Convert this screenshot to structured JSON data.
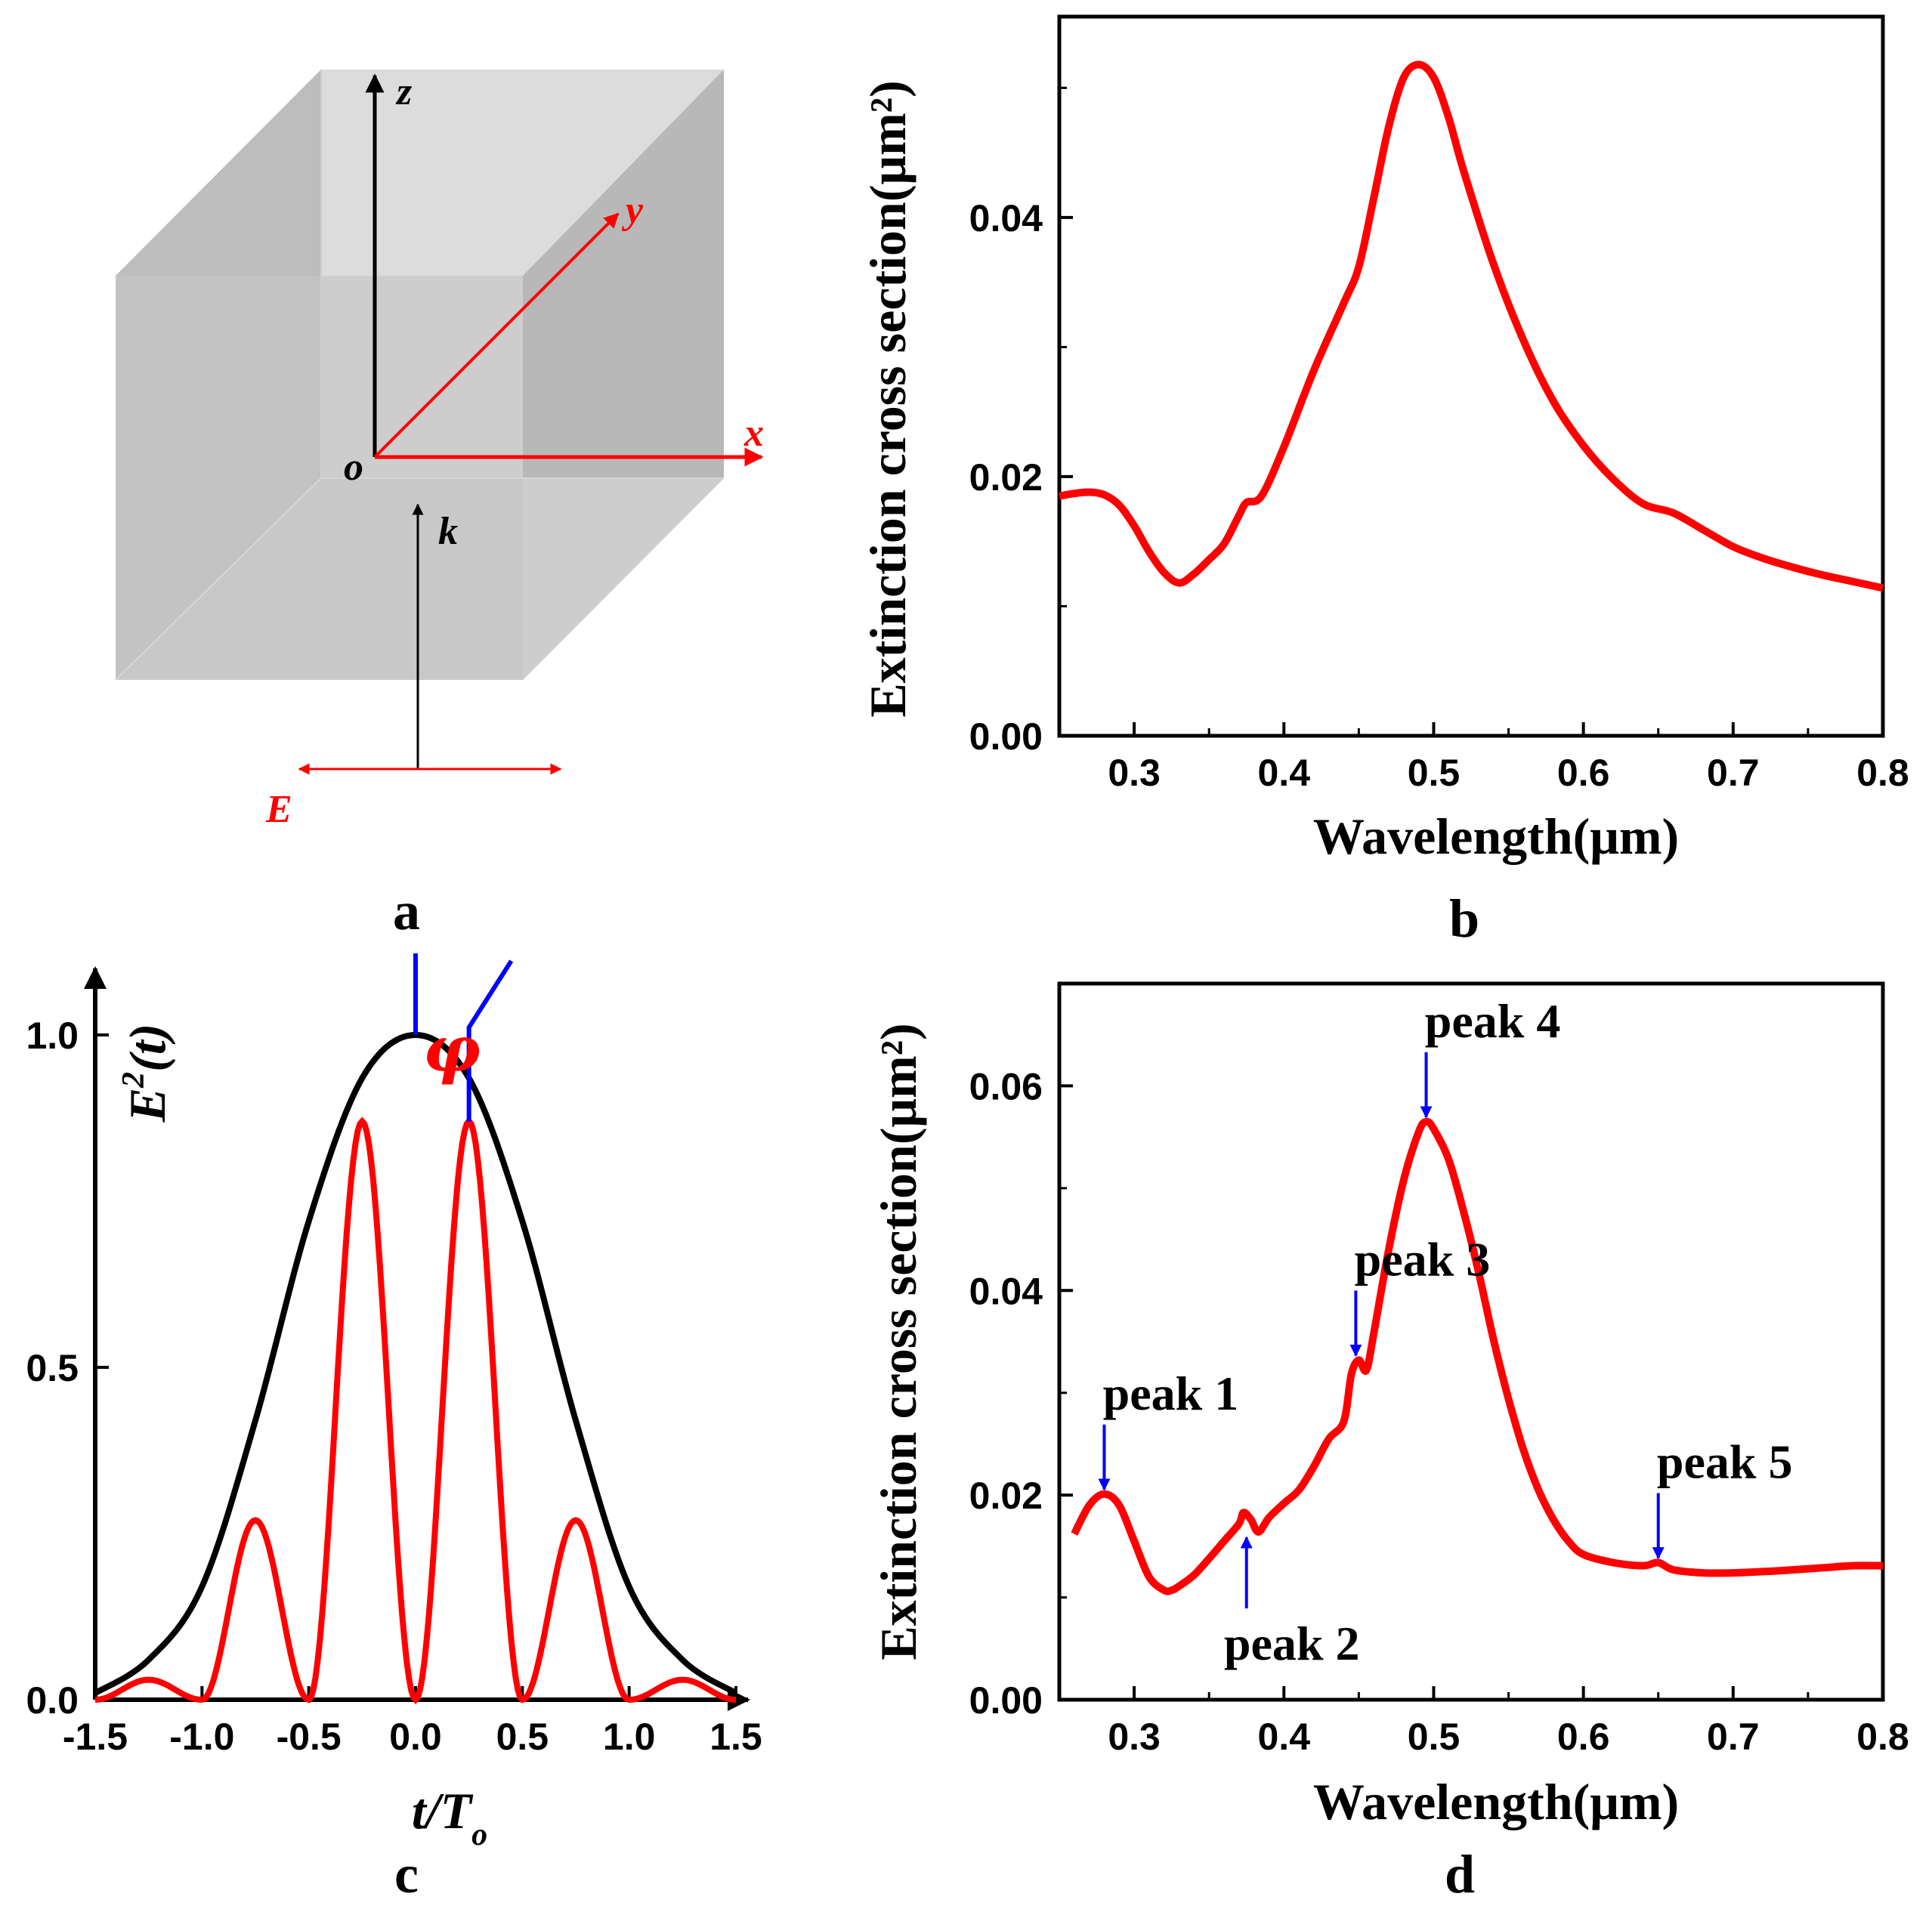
{
  "colors": {
    "red": "#ff0000",
    "blue": "#0000ff",
    "black": "#000000",
    "cube_front": "#c8c8c8",
    "cube_side": "#b3b3b3",
    "cube_top": "#dcdcdc"
  },
  "panel_a": {
    "label": "a",
    "axes": {
      "z": "z",
      "y": "y",
      "x": "x",
      "o": "o",
      "k": "k",
      "E": "E"
    }
  },
  "chart_data": [
    {
      "id": "b",
      "type": "line",
      "panel_label": "b",
      "xlabel": "Wavelength(μm)",
      "ylabel": "Extinction cross section(μm²)",
      "xlim": [
        0.25,
        0.8
      ],
      "ylim": [
        0,
        0.0555
      ],
      "xticks": [
        0.3,
        0.4,
        0.5,
        0.6,
        0.7,
        0.8
      ],
      "xtick_labels": [
        "0.3",
        "0.4",
        "0.5",
        "0.6",
        "0.7",
        "0.8"
      ],
      "yticks": [
        0,
        0.02,
        0.04
      ],
      "ytick_labels": [
        "0.00",
        "0.02",
        "0.04"
      ],
      "series": [
        {
          "color": "#ff0000",
          "x": [
            0.25,
            0.26,
            0.27,
            0.28,
            0.29,
            0.3,
            0.31,
            0.32,
            0.33,
            0.34,
            0.35,
            0.36,
            0.37,
            0.375,
            0.385,
            0.4,
            0.42,
            0.44,
            0.45,
            0.46,
            0.47,
            0.48,
            0.49,
            0.5,
            0.51,
            0.52,
            0.54,
            0.56,
            0.58,
            0.6,
            0.62,
            0.64,
            0.66,
            0.68,
            0.7,
            0.72,
            0.74,
            0.76,
            0.78,
            0.8
          ],
          "y": [
            0.0185,
            0.0187,
            0.0188,
            0.0186,
            0.0178,
            0.0162,
            0.0142,
            0.0126,
            0.0118,
            0.0125,
            0.0136,
            0.0148,
            0.017,
            0.018,
            0.0185,
            0.0223,
            0.0282,
            0.0334,
            0.0362,
            0.0415,
            0.047,
            0.0508,
            0.0518,
            0.0508,
            0.0477,
            0.0436,
            0.0364,
            0.0305,
            0.0258,
            0.0224,
            0.0198,
            0.0179,
            0.0172,
            0.0159,
            0.0146,
            0.0137,
            0.013,
            0.0124,
            0.0119,
            0.0114
          ]
        }
      ]
    },
    {
      "id": "c",
      "type": "line",
      "panel_label": "c",
      "xlabel": "t/T",
      "xlabel_sub": "o",
      "ylabel": "E",
      "ylabel_sup": "2",
      "ylabel_tail": "(t)",
      "xlim": [
        -1.5,
        1.5
      ],
      "ylim": [
        0,
        1.1
      ],
      "xticks": [
        -1.5,
        -1.0,
        -0.5,
        0.0,
        0.5,
        1.0,
        1.5
      ],
      "xtick_labels": [
        "-1.5",
        "-1.0",
        "-0.5",
        "0.0",
        "0.5",
        "1.0",
        "1.5"
      ],
      "yticks": [
        0,
        0.5,
        1.0
      ],
      "ytick_labels": [
        "0.0",
        "0.5",
        "1.0"
      ],
      "phase_label": "φ",
      "phase_shift": 0.25,
      "series": [
        {
          "color": "#000000",
          "x": [
            -1.5,
            -1.25,
            -1.0,
            -0.75,
            -0.5,
            -0.25,
            0.0,
            0.25,
            0.5,
            0.75,
            1.0,
            1.25,
            1.5
          ],
          "y": [
            0.01,
            0.06,
            0.17,
            0.42,
            0.72,
            0.935,
            1.0,
            0.935,
            0.72,
            0.42,
            0.17,
            0.06,
            0.01
          ]
        },
        {
          "color": "#ff0000",
          "x": [
            -1.5,
            -1.25,
            -1.0,
            -0.75,
            -0.5,
            -0.25,
            0.0,
            0.25,
            0.5,
            0.75,
            1.0,
            1.25,
            1.5
          ],
          "y": [
            0.0,
            0.03,
            0.0,
            0.27,
            0.0,
            0.87,
            0.0,
            0.87,
            0.0,
            0.27,
            0.0,
            0.03,
            0.0
          ]
        }
      ]
    },
    {
      "id": "d",
      "type": "line",
      "panel_label": "d",
      "xlabel": "Wavelength(μm)",
      "ylabel": "Extinction cross section(μm²)",
      "xlim": [
        0.25,
        0.8
      ],
      "ylim": [
        0,
        0.07
      ],
      "xticks": [
        0.3,
        0.4,
        0.5,
        0.6,
        0.7,
        0.8
      ],
      "xtick_labels": [
        "0.3",
        "0.4",
        "0.5",
        "0.6",
        "0.7",
        "0.8"
      ],
      "yticks": [
        0,
        0.02,
        0.04,
        0.06
      ],
      "ytick_labels": [
        "0.00",
        "0.02",
        "0.04",
        "0.06"
      ],
      "series": [
        {
          "color": "#ff0000",
          "x": [
            0.26,
            0.27,
            0.28,
            0.29,
            0.3,
            0.31,
            0.32,
            0.325,
            0.33,
            0.34,
            0.35,
            0.36,
            0.37,
            0.373,
            0.378,
            0.383,
            0.39,
            0.4,
            0.41,
            0.42,
            0.43,
            0.44,
            0.445,
            0.45,
            0.455,
            0.46,
            0.47,
            0.48,
            0.49,
            0.495,
            0.5,
            0.51,
            0.52,
            0.53,
            0.54,
            0.55,
            0.56,
            0.57,
            0.58,
            0.59,
            0.6,
            0.62,
            0.64,
            0.65,
            0.66,
            0.68,
            0.7,
            0.73,
            0.76,
            0.78,
            0.8
          ],
          "y": [
            0.0162,
            0.019,
            0.0201,
            0.019,
            0.0155,
            0.012,
            0.0107,
            0.0107,
            0.0111,
            0.0122,
            0.0138,
            0.0155,
            0.0172,
            0.0183,
            0.0176,
            0.0164,
            0.0178,
            0.0192,
            0.0205,
            0.0228,
            0.0255,
            0.0272,
            0.0318,
            0.0332,
            0.0322,
            0.0358,
            0.044,
            0.0508,
            0.0555,
            0.0565,
            0.0558,
            0.0528,
            0.0477,
            0.0418,
            0.0352,
            0.0294,
            0.0244,
            0.0205,
            0.0176,
            0.0155,
            0.0142,
            0.0134,
            0.0131,
            0.0134,
            0.0127,
            0.0124,
            0.0124,
            0.0126,
            0.0129,
            0.0131,
            0.0131
          ]
        }
      ],
      "annotations": [
        {
          "label": "peak 1",
          "x": 0.28,
          "y": 0.0201,
          "direction": "down"
        },
        {
          "label": "peak 2",
          "x": 0.375,
          "y": 0.0172,
          "direction": "up"
        },
        {
          "label": "peak 3",
          "x": 0.448,
          "y": 0.0332,
          "direction": "down"
        },
        {
          "label": "peak 4",
          "x": 0.495,
          "y": 0.0565,
          "direction": "down"
        },
        {
          "label": "peak 5",
          "x": 0.65,
          "y": 0.0134,
          "direction": "down"
        }
      ]
    }
  ]
}
